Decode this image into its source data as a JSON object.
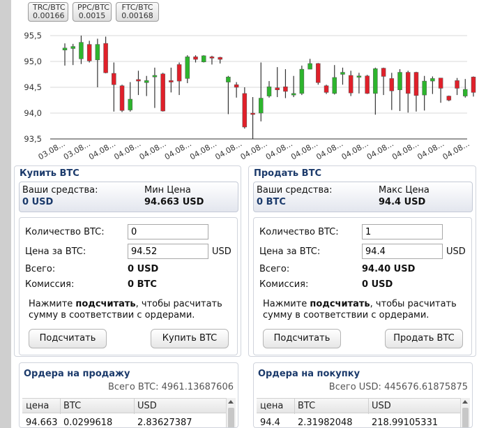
{
  "tickers": [
    {
      "symbol": "TRC/BTC",
      "value": "0.00166"
    },
    {
      "symbol": "PPC/BTC",
      "value": "0.0015"
    },
    {
      "symbol": "FTC/BTC",
      "value": "0.00168"
    }
  ],
  "chart_data": {
    "type": "candlestick",
    "ylim": [
      93.5,
      95.5
    ],
    "y_ticks": [
      "95,5",
      "95,0",
      "94,5",
      "94,0",
      "93,5"
    ],
    "x_tick_labels": [
      "03.08...",
      "03.08...",
      "04.08...",
      "04.08...",
      "04.08...",
      "04.08...",
      "04.08...",
      "04.08...",
      "04.08...",
      "04.08...",
      "04.08...",
      "04.08...",
      "04.08...",
      "04.08...",
      "04.08...",
      "04.08...",
      "04.08..."
    ],
    "up_color": "#2db52d",
    "down_color": "#e0202a",
    "candles": [
      {
        "o": 95.22,
        "c": 95.26,
        "h": 95.35,
        "l": 94.92
      },
      {
        "o": 95.25,
        "c": 95.29,
        "h": 95.34,
        "l": 94.93
      },
      {
        "o": 95.05,
        "c": 95.37,
        "h": 95.5,
        "l": 94.95
      },
      {
        "o": 95.33,
        "c": 95.01,
        "h": 95.4,
        "l": 94.98
      },
      {
        "o": 95.03,
        "c": 95.33,
        "h": 95.44,
        "l": 94.5
      },
      {
        "o": 95.35,
        "c": 94.78,
        "h": 95.48,
        "l": 94.77
      },
      {
        "o": 94.77,
        "c": 94.55,
        "h": 94.98,
        "l": 94.03
      },
      {
        "o": 94.53,
        "c": 94.05,
        "h": 94.55,
        "l": 94.02
      },
      {
        "o": 94.06,
        "c": 94.27,
        "h": 94.6,
        "l": 94.03
      },
      {
        "o": 94.65,
        "c": 94.62,
        "h": 94.82,
        "l": 94.35
      },
      {
        "o": 94.59,
        "c": 94.63,
        "h": 94.72,
        "l": 94.33
      },
      {
        "o": 94.7,
        "c": 94.73,
        "h": 94.88,
        "l": 94.1
      },
      {
        "o": 94.76,
        "c": 94.04,
        "h": 94.78,
        "l": 94.03
      },
      {
        "o": 94.63,
        "c": 94.6,
        "h": 94.88,
        "l": 94.4
      },
      {
        "o": 94.94,
        "c": 94.62,
        "h": 94.98,
        "l": 94.35
      },
      {
        "o": 94.67,
        "c": 95.09,
        "h": 95.12,
        "l": 94.58
      },
      {
        "o": 95.09,
        "c": 95.04,
        "h": 95.12,
        "l": 94.98
      },
      {
        "o": 94.99,
        "c": 95.11,
        "h": 95.12,
        "l": 94.98
      },
      {
        "o": 95.09,
        "c": 95.07,
        "h": 95.11,
        "l": 94.94
      },
      {
        "o": 95.08,
        "c": 95.04,
        "h": 95.09,
        "l": 94.96
      },
      {
        "o": 94.6,
        "c": 94.7,
        "h": 94.72,
        "l": 93.98
      },
      {
        "o": 94.55,
        "c": 94.5,
        "h": 94.6,
        "l": 94.3
      },
      {
        "o": 94.38,
        "c": 93.73,
        "h": 94.5,
        "l": 93.7
      },
      {
        "o": 94.0,
        "c": 93.98,
        "h": 94.31,
        "l": 93.5
      },
      {
        "o": 94.0,
        "c": 94.29,
        "h": 94.98,
        "l": 93.84
      },
      {
        "o": 94.33,
        "c": 94.51,
        "h": 94.62,
        "l": 94.3
      },
      {
        "o": 94.49,
        "c": 94.45,
        "h": 94.89,
        "l": 94.31
      },
      {
        "o": 94.51,
        "c": 94.42,
        "h": 94.85,
        "l": 94.29
      },
      {
        "o": 94.35,
        "c": 94.38,
        "h": 94.72,
        "l": 94.31
      },
      {
        "o": 94.38,
        "c": 94.85,
        "h": 94.92,
        "l": 94.35
      },
      {
        "o": 94.85,
        "c": 94.96,
        "h": 95.05,
        "l": 94.85
      },
      {
        "o": 94.96,
        "c": 94.59,
        "h": 94.97,
        "l": 94.55
      },
      {
        "o": 94.53,
        "c": 94.4,
        "h": 94.55,
        "l": 94.37
      },
      {
        "o": 94.38,
        "c": 94.69,
        "h": 94.93,
        "l": 94.36
      },
      {
        "o": 94.75,
        "c": 94.79,
        "h": 94.88,
        "l": 94.55
      },
      {
        "o": 94.73,
        "c": 94.39,
        "h": 94.82,
        "l": 94.33
      },
      {
        "o": 94.71,
        "c": 94.72,
        "h": 94.78,
        "l": 94.38
      },
      {
        "o": 94.72,
        "c": 94.38,
        "h": 94.74,
        "l": 94.37
      },
      {
        "o": 94.38,
        "c": 94.86,
        "h": 94.88,
        "l": 93.97
      },
      {
        "o": 94.87,
        "c": 94.71,
        "h": 94.88,
        "l": 94.35
      },
      {
        "o": 94.67,
        "c": 94.43,
        "h": 94.78,
        "l": 94.06
      },
      {
        "o": 94.45,
        "c": 94.79,
        "h": 94.85,
        "l": 94.04
      },
      {
        "o": 94.79,
        "c": 94.38,
        "h": 94.82,
        "l": 94.01
      },
      {
        "o": 94.79,
        "c": 94.34,
        "h": 94.8,
        "l": 94.03
      },
      {
        "o": 94.35,
        "c": 94.62,
        "h": 94.72,
        "l": 94.05
      },
      {
        "o": 94.62,
        "c": 94.67,
        "h": 94.71,
        "l": 94.37
      },
      {
        "o": 94.68,
        "c": 94.48,
        "h": 94.68,
        "l": 94.2
      },
      {
        "o": 94.33,
        "c": 94.25,
        "h": 94.34,
        "l": 94.23
      },
      {
        "o": 94.63,
        "c": 94.48,
        "h": 94.68,
        "l": 94.35
      },
      {
        "o": 94.33,
        "c": 94.46,
        "h": 94.66,
        "l": 94.3
      },
      {
        "o": 94.7,
        "c": 94.4,
        "h": 94.71,
        "l": 94.32
      }
    ]
  },
  "buy": {
    "title": "Купить BTC",
    "funds_label": "Ваши средства:",
    "funds_value": "0 USD",
    "price_label": "Мин Цена",
    "price_value": "94.663 USD",
    "qty_label": "Количество BTC:",
    "qty_value": "0",
    "unit_price_label": "Цена за BTC:",
    "unit_price_value": "94.52",
    "unit_price_unit": "USD",
    "total_label": "Всего:",
    "total_value": "0 USD",
    "fee_label": "Комиссия:",
    "fee_value": "0 BTC",
    "hint_before": "Нажмите ",
    "hint_bold": "подсчитать",
    "hint_after": ", чтобы расчитать сумму в соответствии с ордерами.",
    "calc_button": "Подсчитать",
    "action_button": "Купить BTC"
  },
  "sell": {
    "title": "Продать BTC",
    "funds_label": "Ваши средства:",
    "funds_value": "0 BTC",
    "price_label": "Макс Цена",
    "price_value": "94.4 USD",
    "qty_label": "Количество BTC:",
    "qty_value": "1",
    "unit_price_label": "Цена за BTC:",
    "unit_price_value": "94.4",
    "unit_price_unit": "USD",
    "total_label": "Всего:",
    "total_value": "94.40 USD",
    "fee_label": "Комиссия:",
    "fee_value": "0 USD",
    "hint_before": "Нажмите ",
    "hint_bold": "подсчитать",
    "hint_after": ", чтобы расчитать сумму в соответствии с ордерами.",
    "calc_button": "Подсчитать",
    "action_button": "Продать BTC"
  },
  "sell_orders": {
    "title": "Ордера на продажу",
    "total": "Всего BTC: 4961.13687606",
    "columns": [
      "цена",
      "BTC",
      "USD"
    ],
    "rows": [
      [
        "94.663",
        "0.0299618",
        "2.83627387"
      ]
    ]
  },
  "buy_orders": {
    "title": "Ордера на покупку",
    "total": "Всего USD: 445676.61875875",
    "columns": [
      "цена",
      "BTC",
      "USD"
    ],
    "rows": [
      [
        "94.4",
        "2.31982048",
        "218.99105331"
      ]
    ]
  }
}
